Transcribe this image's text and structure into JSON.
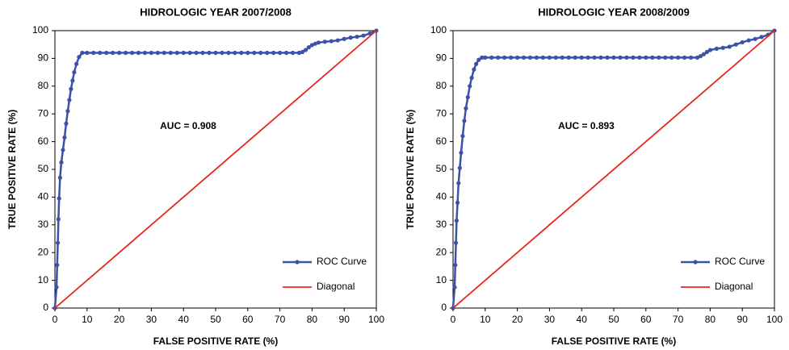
{
  "chart_data": [
    {
      "type": "line",
      "title": "HIDROLOGIC YEAR 2007/2008",
      "x_label": "FALSE POSITIVE RATE (%)",
      "y_label": "TRUE POSITIVE RATE (%)",
      "annotation": "AUC = 0.908",
      "xlim": [
        0,
        100
      ],
      "ylim": [
        0,
        100
      ],
      "xticks": [
        0,
        10,
        20,
        30,
        40,
        50,
        60,
        70,
        80,
        90,
        100
      ],
      "yticks": [
        0,
        10,
        20,
        30,
        40,
        50,
        60,
        70,
        80,
        90,
        100
      ],
      "legend": "lower right",
      "series": [
        {
          "name": "ROC Curve",
          "color": "#3a52a8",
          "markers": true,
          "x": [
            0,
            0.5,
            0.7,
            0.9,
            1.1,
            1.3,
            1.6,
            2,
            2.5,
            3,
            3.5,
            4,
            4.5,
            5,
            5.5,
            6,
            6.7,
            7.5,
            8.5,
            10,
            12,
            14,
            16,
            18,
            20,
            22,
            24,
            26,
            28,
            30,
            32,
            34,
            36,
            38,
            40,
            42,
            44,
            46,
            48,
            50,
            52,
            54,
            56,
            58,
            60,
            62,
            64,
            66,
            68,
            70,
            72,
            74,
            76,
            77,
            78,
            79,
            80,
            81,
            82,
            84,
            86,
            88,
            90,
            92,
            94,
            96,
            98,
            100
          ],
          "values": [
            0,
            7.5,
            15.5,
            23.5,
            32,
            39.5,
            47,
            52.5,
            57,
            61.5,
            66.5,
            71,
            75,
            79,
            82,
            85,
            88,
            90.5,
            92,
            92,
            92,
            92,
            92,
            92,
            92,
            92,
            92,
            92,
            92,
            92,
            92,
            92,
            92,
            92,
            92,
            92,
            92,
            92,
            92,
            92,
            92,
            92,
            92,
            92,
            92,
            92,
            92,
            92,
            92,
            92,
            92,
            92,
            92,
            92.3,
            93,
            94,
            94.8,
            95.3,
            95.7,
            96,
            96.2,
            96.5,
            97,
            97.5,
            97.8,
            98.2,
            99,
            100
          ]
        },
        {
          "name": "Diagonal",
          "color": "#e8251f",
          "markers": false,
          "x": [
            0,
            100
          ],
          "values": [
            0,
            100
          ]
        }
      ]
    },
    {
      "type": "line",
      "title": "HIDROLOGIC YEAR 2008/2009",
      "x_label": "FALSE POSITIVE RATE (%)",
      "y_label": "TRUE POSITIVE RATE (%)",
      "annotation": "AUC = 0.893",
      "xlim": [
        0,
        100
      ],
      "ylim": [
        0,
        100
      ],
      "xticks": [
        0,
        10,
        20,
        30,
        40,
        50,
        60,
        70,
        80,
        90,
        100
      ],
      "yticks": [
        0,
        10,
        20,
        30,
        40,
        50,
        60,
        70,
        80,
        90,
        100
      ],
      "legend": "lower right",
      "series": [
        {
          "name": "ROC Curve",
          "color": "#3a52a8",
          "markers": true,
          "x": [
            0,
            0.5,
            0.7,
            0.9,
            1.1,
            1.4,
            1.7,
            2.1,
            2.5,
            3,
            3.5,
            4,
            4.6,
            5.2,
            5.8,
            6.5,
            7.2,
            8,
            9,
            10,
            12,
            14,
            16,
            18,
            20,
            22,
            24,
            26,
            28,
            30,
            32,
            34,
            36,
            38,
            40,
            42,
            44,
            46,
            48,
            50,
            52,
            54,
            56,
            58,
            60,
            62,
            64,
            66,
            68,
            70,
            72,
            74,
            76,
            77,
            78,
            79,
            80,
            82,
            84,
            86,
            88,
            90,
            92,
            94,
            96,
            98,
            100
          ],
          "values": [
            0,
            7.5,
            15.5,
            23.5,
            31.5,
            38,
            45,
            50.5,
            56,
            62,
            67.5,
            72,
            76,
            80,
            83,
            86,
            88,
            89.5,
            90.3,
            90.3,
            90.3,
            90.3,
            90.3,
            90.3,
            90.3,
            90.3,
            90.3,
            90.3,
            90.3,
            90.3,
            90.3,
            90.3,
            90.3,
            90.3,
            90.3,
            90.3,
            90.3,
            90.3,
            90.3,
            90.3,
            90.3,
            90.3,
            90.3,
            90.3,
            90.3,
            90.3,
            90.3,
            90.3,
            90.3,
            90.3,
            90.3,
            90.3,
            90.3,
            90.8,
            91.5,
            92.3,
            93,
            93.5,
            93.8,
            94.2,
            95,
            95.8,
            96.5,
            97,
            97.7,
            98.5,
            100
          ]
        },
        {
          "name": "Diagonal",
          "color": "#e8251f",
          "markers": false,
          "x": [
            0,
            100
          ],
          "values": [
            0,
            100
          ]
        }
      ]
    }
  ]
}
